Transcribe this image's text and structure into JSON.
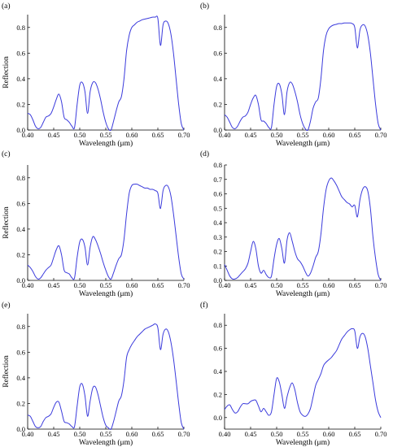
{
  "colors": {
    "series": "#3b3bdc",
    "axis": "#000000",
    "background": "#ffffff"
  },
  "chart_data": [
    {
      "type": "line",
      "panel_label": "(a)",
      "xlabel": "Wavelength (μm)",
      "ylabel": "Reflection",
      "xlim": [
        0.4,
        0.7
      ],
      "ylim": [
        0.0,
        0.9
      ],
      "xticks": [
        0.4,
        0.45,
        0.5,
        0.55,
        0.6,
        0.65,
        0.7
      ],
      "xtick_labels": [
        "0.40",
        "0.45",
        "0.50",
        "0.55",
        "0.60",
        "0.65",
        "0.70"
      ],
      "yticks": [
        0.0,
        0.2,
        0.4,
        0.6,
        0.8
      ],
      "ytick_labels": [
        "0.0",
        "0.2",
        "0.4",
        "0.6",
        "0.8"
      ],
      "series": [
        {
          "x": [
            0.4,
            0.405,
            0.41,
            0.415,
            0.42,
            0.425,
            0.43,
            0.435,
            0.44,
            0.445,
            0.45,
            0.455,
            0.46,
            0.465,
            0.47,
            0.475,
            0.48,
            0.485,
            0.49,
            0.495,
            0.5,
            0.505,
            0.51,
            0.515,
            0.52,
            0.525,
            0.53,
            0.535,
            0.54,
            0.545,
            0.55,
            0.555,
            0.56,
            0.565,
            0.57,
            0.575,
            0.58,
            0.585,
            0.59,
            0.595,
            0.6,
            0.605,
            0.61,
            0.615,
            0.62,
            0.625,
            0.63,
            0.635,
            0.64,
            0.645,
            0.65,
            0.655,
            0.66,
            0.665,
            0.67,
            0.675,
            0.68,
            0.685,
            0.69,
            0.695,
            0.7
          ],
          "y": [
            0.13,
            0.12,
            0.08,
            0.03,
            0.01,
            0.02,
            0.06,
            0.1,
            0.11,
            0.13,
            0.18,
            0.24,
            0.28,
            0.22,
            0.1,
            0.08,
            0.06,
            0.03,
            0.02,
            0.2,
            0.35,
            0.37,
            0.3,
            0.13,
            0.3,
            0.37,
            0.37,
            0.32,
            0.24,
            0.14,
            0.06,
            0.01,
            0.0,
            0.07,
            0.15,
            0.22,
            0.26,
            0.4,
            0.62,
            0.74,
            0.8,
            0.82,
            0.84,
            0.85,
            0.86,
            0.865,
            0.87,
            0.875,
            0.88,
            0.88,
            0.87,
            0.66,
            0.82,
            0.85,
            0.83,
            0.75,
            0.6,
            0.4,
            0.2,
            0.05,
            0.0
          ]
        }
      ]
    },
    {
      "type": "line",
      "panel_label": "(b)",
      "xlabel": "Wavelength (μm)",
      "ylabel": "",
      "xlim": [
        0.4,
        0.7
      ],
      "ylim": [
        0.0,
        0.9
      ],
      "xticks": [
        0.4,
        0.45,
        0.5,
        0.55,
        0.6,
        0.65,
        0.7
      ],
      "xtick_labels": [
        "0.40",
        "0.45",
        "0.50",
        "0.55",
        "0.60",
        "0.65",
        "0.70"
      ],
      "yticks": [
        0.0,
        0.2,
        0.4,
        0.6,
        0.8
      ],
      "ytick_labels": [
        "0.0",
        "0.2",
        "0.4",
        "0.6",
        "0.8"
      ],
      "series": [
        {
          "x": [
            0.4,
            0.405,
            0.41,
            0.415,
            0.42,
            0.425,
            0.43,
            0.435,
            0.44,
            0.445,
            0.45,
            0.455,
            0.46,
            0.465,
            0.47,
            0.475,
            0.48,
            0.485,
            0.49,
            0.495,
            0.5,
            0.505,
            0.51,
            0.515,
            0.52,
            0.525,
            0.53,
            0.535,
            0.54,
            0.545,
            0.55,
            0.555,
            0.56,
            0.565,
            0.57,
            0.575,
            0.58,
            0.585,
            0.59,
            0.595,
            0.6,
            0.605,
            0.61,
            0.615,
            0.62,
            0.625,
            0.63,
            0.635,
            0.64,
            0.645,
            0.65,
            0.655,
            0.66,
            0.665,
            0.67,
            0.675,
            0.68,
            0.685,
            0.69,
            0.695,
            0.7
          ],
          "y": [
            0.12,
            0.1,
            0.06,
            0.02,
            0.01,
            0.03,
            0.07,
            0.1,
            0.11,
            0.14,
            0.2,
            0.25,
            0.27,
            0.2,
            0.08,
            0.07,
            0.05,
            0.02,
            0.02,
            0.2,
            0.34,
            0.36,
            0.28,
            0.12,
            0.3,
            0.37,
            0.36,
            0.3,
            0.22,
            0.12,
            0.05,
            0.01,
            0.0,
            0.07,
            0.17,
            0.22,
            0.25,
            0.4,
            0.62,
            0.74,
            0.79,
            0.81,
            0.82,
            0.825,
            0.83,
            0.83,
            0.835,
            0.835,
            0.835,
            0.83,
            0.8,
            0.64,
            0.78,
            0.82,
            0.81,
            0.74,
            0.6,
            0.4,
            0.2,
            0.05,
            0.0
          ]
        }
      ]
    },
    {
      "type": "line",
      "panel_label": "(c)",
      "xlabel": "Wavelength (μm)",
      "ylabel": "Reflection",
      "xlim": [
        0.4,
        0.7
      ],
      "ylim": [
        0.0,
        0.9
      ],
      "xticks": [
        0.4,
        0.45,
        0.5,
        0.55,
        0.6,
        0.65,
        0.7
      ],
      "xtick_labels": [
        "0.40",
        "0.45",
        "0.50",
        "0.55",
        "0.60",
        "0.65",
        "0.70"
      ],
      "yticks": [
        0.0,
        0.2,
        0.4,
        0.6,
        0.8
      ],
      "ytick_labels": [
        "0.0",
        "0.2",
        "0.4",
        "0.6",
        "0.8"
      ],
      "series": [
        {
          "x": [
            0.4,
            0.405,
            0.41,
            0.415,
            0.42,
            0.425,
            0.43,
            0.435,
            0.44,
            0.445,
            0.45,
            0.455,
            0.46,
            0.465,
            0.47,
            0.475,
            0.48,
            0.485,
            0.49,
            0.495,
            0.5,
            0.505,
            0.51,
            0.515,
            0.52,
            0.525,
            0.53,
            0.535,
            0.54,
            0.545,
            0.55,
            0.555,
            0.56,
            0.565,
            0.57,
            0.575,
            0.58,
            0.585,
            0.59,
            0.595,
            0.6,
            0.605,
            0.61,
            0.615,
            0.62,
            0.625,
            0.63,
            0.635,
            0.64,
            0.645,
            0.65,
            0.655,
            0.66,
            0.665,
            0.67,
            0.675,
            0.68,
            0.685,
            0.69,
            0.695,
            0.7
          ],
          "y": [
            0.12,
            0.1,
            0.07,
            0.03,
            0.01,
            0.02,
            0.05,
            0.08,
            0.1,
            0.12,
            0.18,
            0.24,
            0.27,
            0.2,
            0.08,
            0.06,
            0.05,
            0.02,
            0.02,
            0.18,
            0.3,
            0.32,
            0.26,
            0.12,
            0.26,
            0.34,
            0.32,
            0.27,
            0.21,
            0.14,
            0.08,
            0.03,
            0.01,
            0.06,
            0.12,
            0.17,
            0.2,
            0.32,
            0.52,
            0.68,
            0.74,
            0.75,
            0.75,
            0.74,
            0.73,
            0.72,
            0.72,
            0.71,
            0.71,
            0.7,
            0.68,
            0.56,
            0.7,
            0.74,
            0.73,
            0.66,
            0.52,
            0.35,
            0.18,
            0.05,
            0.01
          ]
        }
      ]
    },
    {
      "type": "line",
      "panel_label": "(d)",
      "xlabel": "Wavelength (μm)",
      "ylabel": "",
      "xlim": [
        0.4,
        0.7
      ],
      "ylim": [
        0.0,
        0.8
      ],
      "xticks": [
        0.4,
        0.45,
        0.5,
        0.55,
        0.6,
        0.65,
        0.7
      ],
      "xtick_labels": [
        "0.40",
        "0.45",
        "0.50",
        "0.55",
        "0.60",
        "0.65",
        "0.70"
      ],
      "yticks": [
        0.0,
        0.1,
        0.2,
        0.3,
        0.4,
        0.5,
        0.6,
        0.7,
        0.8
      ],
      "ytick_labels": [
        "0.0",
        "0.1",
        "0.2",
        "0.3",
        "0.4",
        "0.5",
        "0.6",
        "0.7",
        "0.8"
      ],
      "series": [
        {
          "x": [
            0.4,
            0.405,
            0.41,
            0.415,
            0.42,
            0.425,
            0.43,
            0.435,
            0.44,
            0.445,
            0.45,
            0.455,
            0.46,
            0.465,
            0.47,
            0.475,
            0.48,
            0.485,
            0.49,
            0.495,
            0.5,
            0.505,
            0.51,
            0.515,
            0.52,
            0.525,
            0.53,
            0.535,
            0.54,
            0.545,
            0.55,
            0.555,
            0.56,
            0.565,
            0.57,
            0.575,
            0.58,
            0.585,
            0.59,
            0.595,
            0.6,
            0.605,
            0.61,
            0.615,
            0.62,
            0.625,
            0.63,
            0.635,
            0.64,
            0.645,
            0.65,
            0.655,
            0.66,
            0.665,
            0.67,
            0.675,
            0.68,
            0.685,
            0.69,
            0.695,
            0.7
          ],
          "y": [
            0.11,
            0.07,
            0.03,
            0.01,
            0.01,
            0.02,
            0.04,
            0.06,
            0.08,
            0.12,
            0.2,
            0.27,
            0.22,
            0.1,
            0.05,
            0.07,
            0.04,
            0.02,
            0.03,
            0.15,
            0.25,
            0.29,
            0.22,
            0.12,
            0.28,
            0.33,
            0.27,
            0.2,
            0.15,
            0.13,
            0.1,
            0.06,
            0.03,
            0.05,
            0.1,
            0.16,
            0.2,
            0.32,
            0.5,
            0.63,
            0.69,
            0.71,
            0.69,
            0.66,
            0.62,
            0.58,
            0.56,
            0.54,
            0.53,
            0.51,
            0.52,
            0.44,
            0.56,
            0.63,
            0.65,
            0.62,
            0.5,
            0.3,
            0.15,
            0.04,
            0.0
          ]
        }
      ]
    },
    {
      "type": "line",
      "panel_label": "(e)",
      "xlabel": "Wavelength (μm)",
      "ylabel": "Reflection",
      "xlim": [
        0.4,
        0.7
      ],
      "ylim": [
        0.0,
        0.9
      ],
      "xticks": [
        0.4,
        0.45,
        0.5,
        0.55,
        0.6,
        0.65,
        0.7
      ],
      "xtick_labels": [
        "0.40",
        "0.45",
        "0.50",
        "0.55",
        "0.60",
        "0.65",
        "0.70"
      ],
      "yticks": [
        0.0,
        0.2,
        0.4,
        0.6,
        0.8
      ],
      "ytick_labels": [
        "0.0",
        "0.2",
        "0.4",
        "0.6",
        "0.8"
      ],
      "series": [
        {
          "x": [
            0.4,
            0.405,
            0.41,
            0.415,
            0.42,
            0.425,
            0.43,
            0.435,
            0.44,
            0.445,
            0.45,
            0.455,
            0.46,
            0.465,
            0.47,
            0.475,
            0.48,
            0.485,
            0.49,
            0.495,
            0.5,
            0.505,
            0.51,
            0.515,
            0.52,
            0.525,
            0.53,
            0.535,
            0.54,
            0.545,
            0.55,
            0.555,
            0.56,
            0.565,
            0.57,
            0.575,
            0.58,
            0.585,
            0.59,
            0.595,
            0.6,
            0.605,
            0.61,
            0.615,
            0.62,
            0.625,
            0.63,
            0.635,
            0.64,
            0.645,
            0.65,
            0.655,
            0.66,
            0.665,
            0.67,
            0.675,
            0.68,
            0.685,
            0.69,
            0.695,
            0.7
          ],
          "y": [
            0.11,
            0.1,
            0.06,
            0.02,
            0.01,
            0.02,
            0.06,
            0.09,
            0.1,
            0.12,
            0.17,
            0.21,
            0.21,
            0.14,
            0.06,
            0.05,
            0.04,
            0.02,
            0.02,
            0.18,
            0.33,
            0.35,
            0.26,
            0.1,
            0.22,
            0.32,
            0.33,
            0.27,
            0.18,
            0.09,
            0.03,
            0.01,
            0.0,
            0.06,
            0.14,
            0.22,
            0.26,
            0.38,
            0.56,
            0.62,
            0.66,
            0.69,
            0.72,
            0.74,
            0.76,
            0.78,
            0.79,
            0.8,
            0.81,
            0.82,
            0.79,
            0.62,
            0.74,
            0.78,
            0.76,
            0.68,
            0.55,
            0.38,
            0.2,
            0.05,
            0.0
          ]
        }
      ]
    },
    {
      "type": "line",
      "panel_label": "(f)",
      "xlabel": "Wavelength (μm)",
      "ylabel": "",
      "xlim": [
        0.4,
        0.7
      ],
      "ylim": [
        -0.1,
        0.9
      ],
      "xticks": [
        0.4,
        0.45,
        0.5,
        0.55,
        0.6,
        0.65,
        0.7
      ],
      "xtick_labels": [
        "0.40",
        "0.45",
        "0.50",
        "0.55",
        "0.60",
        "0.65",
        "0.70"
      ],
      "yticks": [
        0.0,
        0.2,
        0.4,
        0.6,
        0.8
      ],
      "ytick_labels": [
        "0.0",
        "0.2",
        "0.4",
        "0.6",
        "0.8"
      ],
      "series": [
        {
          "x": [
            0.4,
            0.405,
            0.41,
            0.415,
            0.42,
            0.425,
            0.43,
            0.435,
            0.44,
            0.445,
            0.45,
            0.455,
            0.46,
            0.465,
            0.47,
            0.475,
            0.48,
            0.485,
            0.49,
            0.495,
            0.5,
            0.505,
            0.51,
            0.515,
            0.52,
            0.525,
            0.53,
            0.535,
            0.54,
            0.545,
            0.55,
            0.555,
            0.56,
            0.565,
            0.57,
            0.575,
            0.58,
            0.585,
            0.59,
            0.595,
            0.6,
            0.605,
            0.61,
            0.615,
            0.62,
            0.625,
            0.63,
            0.635,
            0.64,
            0.645,
            0.65,
            0.655,
            0.66,
            0.665,
            0.67,
            0.675,
            0.68,
            0.685,
            0.69,
            0.695,
            0.7
          ],
          "y": [
            0.07,
            0.1,
            0.11,
            0.07,
            0.04,
            0.05,
            0.09,
            0.12,
            0.12,
            0.12,
            0.14,
            0.15,
            0.15,
            0.1,
            0.05,
            0.08,
            0.05,
            0.02,
            0.05,
            0.2,
            0.34,
            0.31,
            0.2,
            0.08,
            0.18,
            0.26,
            0.3,
            0.24,
            0.13,
            0.05,
            0.02,
            0.01,
            0.03,
            0.08,
            0.18,
            0.28,
            0.33,
            0.38,
            0.45,
            0.48,
            0.5,
            0.52,
            0.55,
            0.58,
            0.63,
            0.68,
            0.71,
            0.74,
            0.76,
            0.77,
            0.75,
            0.6,
            0.7,
            0.73,
            0.7,
            0.6,
            0.45,
            0.3,
            0.15,
            0.05,
            0.0
          ]
        }
      ]
    }
  ]
}
